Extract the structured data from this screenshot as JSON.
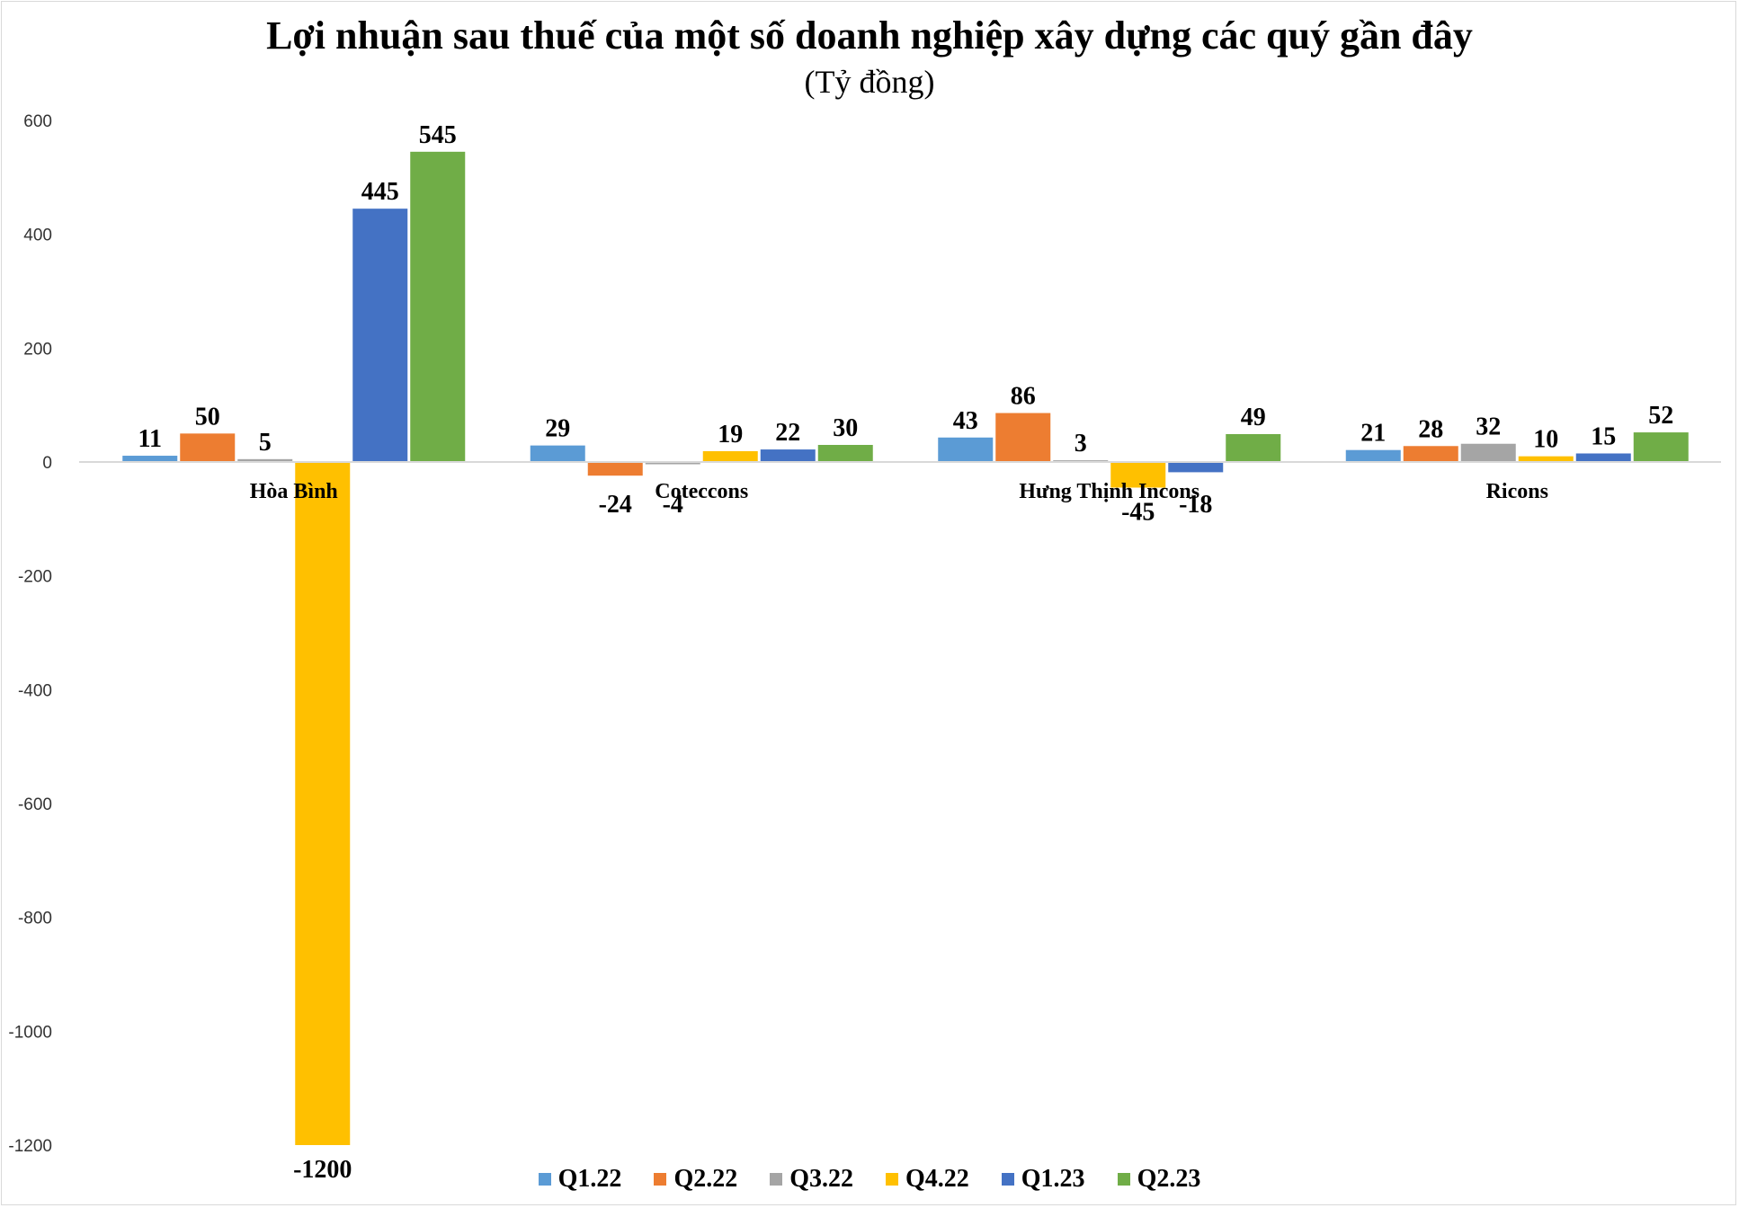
{
  "chart_data": {
    "type": "bar",
    "title": "Lợi nhuận sau thuế của một số doanh nghiệp xây dựng các quý gần đây",
    "subtitle": "(Tỷ đồng)",
    "categories": [
      "Hòa Bình",
      "Coteccons",
      "Hưng Thịnh Incons",
      "Ricons"
    ],
    "series": [
      {
        "name": "Q1.22",
        "color": "#5b9bd5",
        "values": [
          11,
          29,
          43,
          21
        ]
      },
      {
        "name": "Q2.22",
        "color": "#ed7d31",
        "values": [
          50,
          -24,
          86,
          28
        ]
      },
      {
        "name": "Q3.22",
        "color": "#a5a5a5",
        "values": [
          5,
          -4,
          3,
          32
        ]
      },
      {
        "name": "Q4.22",
        "color": "#ffc000",
        "values": [
          -1200,
          19,
          -45,
          10
        ]
      },
      {
        "name": "Q1.23",
        "color": "#4472c4",
        "values": [
          445,
          22,
          -18,
          15
        ]
      },
      {
        "name": "Q2.23",
        "color": "#70ad47",
        "values": [
          545,
          30,
          49,
          52
        ]
      }
    ],
    "ylim": [
      -1200,
      600
    ],
    "yticks": [
      600,
      400,
      200,
      0,
      -200,
      -400,
      -600,
      -800,
      -1000,
      -1200
    ],
    "grid": false,
    "legend_position": "bottom"
  }
}
